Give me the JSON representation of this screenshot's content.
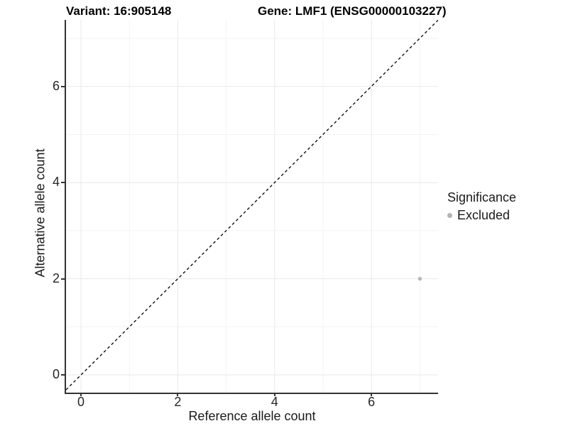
{
  "chart_data": {
    "type": "scatter",
    "title_left": "Variant: 16:905148",
    "title_right": "Gene: LMF1 (ENSG00000103227)",
    "xlabel": "Reference allele count",
    "ylabel": "Alternative allele count",
    "xlim": [
      -0.31,
      7.38
    ],
    "ylim": [
      -0.37,
      7.39
    ],
    "x_major_ticks": [
      0,
      2,
      4,
      6
    ],
    "y_major_ticks": [
      0,
      2,
      4,
      6
    ],
    "x_minor_gridlines": [
      1,
      3,
      5,
      7
    ],
    "y_minor_gridlines": [
      1,
      3,
      5,
      7
    ],
    "grid": true,
    "identity_line": {
      "equation": "y = x",
      "style": "dashed",
      "color": "#000000"
    },
    "series": [
      {
        "name": "Excluded",
        "color": "#b3b3b3",
        "points": [
          {
            "x": 7,
            "y": 2
          }
        ]
      }
    ],
    "legend": {
      "title": "Significance",
      "position": "right",
      "items": [
        {
          "label": "Excluded",
          "color": "#b3b3b3"
        }
      ]
    },
    "colors": {
      "gridline_major": "#e8e8e8",
      "gridline_minor": "#f3f3f3",
      "axis_line": "#333333",
      "point": "#b3b3b3"
    }
  }
}
